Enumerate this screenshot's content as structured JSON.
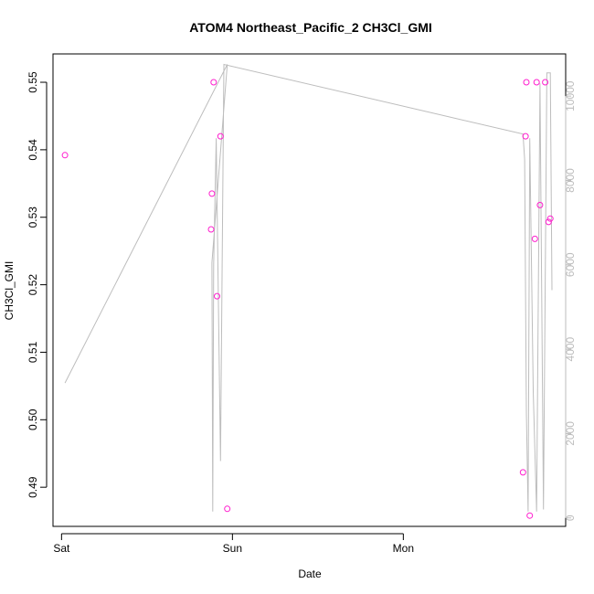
{
  "chart_data": {
    "type": "scatter",
    "title": "ATOM4 Northeast_Pacific_2 CH3Cl_GMI",
    "xlabel": "Date",
    "ylabel": "CH3Cl_GMI",
    "x_unit": "hours since Sat 00:00",
    "xlim": [
      -0.5,
      29.5
    ],
    "ylim": [
      0.4842,
      0.5542
    ],
    "x_ticks": [
      {
        "value": 0,
        "label": "Sat"
      },
      {
        "value": 10,
        "label": "Sun"
      },
      {
        "value": 20,
        "label": "Mon"
      }
    ],
    "y_ticks": [
      {
        "value": 0.49,
        "label": "0.49"
      },
      {
        "value": 0.5,
        "label": "0.50"
      },
      {
        "value": 0.51,
        "label": "0.51"
      },
      {
        "value": 0.52,
        "label": "0.52"
      },
      {
        "value": 0.53,
        "label": "0.53"
      },
      {
        "value": 0.54,
        "label": "0.54"
      },
      {
        "value": 0.55,
        "label": "0.55"
      }
    ],
    "y2_ticks": [
      {
        "value": 0,
        "label": "0"
      },
      {
        "value": 2000,
        "label": "2000"
      },
      {
        "value": 4000,
        "label": "4000"
      },
      {
        "value": 6000,
        "label": "6000"
      },
      {
        "value": 8000,
        "label": "8000"
      },
      {
        "value": 10000,
        "label": "10000"
      }
    ],
    "y2lim": [
      -200,
      11000
    ],
    "points_color": "#ff1dce",
    "line_color": "#bdbdbd",
    "points": [
      {
        "x": 0.2,
        "y": 0.5392
      },
      {
        "x": 8.9,
        "y": 0.55
      },
      {
        "x": 8.8,
        "y": 0.5335
      },
      {
        "x": 8.75,
        "y": 0.5282
      },
      {
        "x": 9.3,
        "y": 0.542
      },
      {
        "x": 9.1,
        "y": 0.5183
      },
      {
        "x": 9.7,
        "y": 0.4868
      },
      {
        "x": 27.2,
        "y": 0.55
      },
      {
        "x": 27.15,
        "y": 0.542
      },
      {
        "x": 27.0,
        "y": 0.4922
      },
      {
        "x": 27.4,
        "y": 0.4858
      },
      {
        "x": 27.7,
        "y": 0.5268
      },
      {
        "x": 27.8,
        "y": 0.55
      },
      {
        "x": 28.0,
        "y": 0.5318
      },
      {
        "x": 28.3,
        "y": 0.55
      },
      {
        "x": 28.5,
        "y": 0.5293
      },
      {
        "x": 28.6,
        "y": 0.5298
      }
    ],
    "secondary_series": {
      "x": [
        0.2,
        9.7,
        8.8,
        8.85,
        8.9,
        9.05,
        9.3,
        9.4,
        9.5,
        27.0,
        27.1,
        27.2,
        27.3,
        27.4,
        27.6,
        27.8,
        28.0,
        28.2,
        28.4,
        28.6,
        28.7
      ],
      "y": [
        3200,
        10750,
        6050,
        150,
        6000,
        9000,
        1350,
        6000,
        10750,
        9100,
        8500,
        2500,
        150,
        9000,
        3000,
        150,
        10300,
        200,
        10550,
        10550,
        5400
      ]
    }
  }
}
